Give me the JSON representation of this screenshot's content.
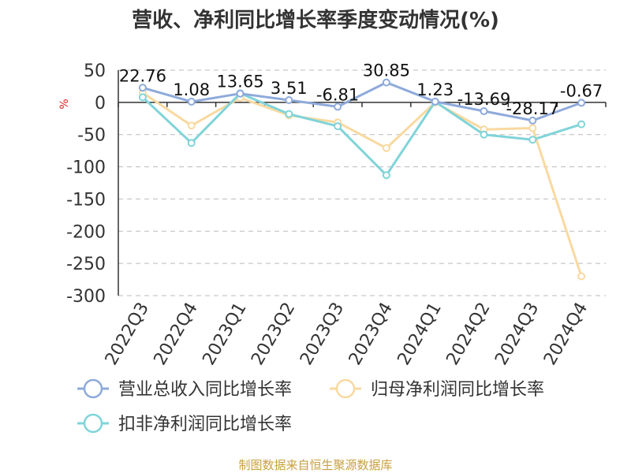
{
  "chart_data": {
    "type": "line",
    "title": "营收、净利同比增长率季度变动情况(%)",
    "ylabel": "%",
    "categories": [
      "2022Q3",
      "2022Q4",
      "2023Q1",
      "2023Q2",
      "2023Q3",
      "2023Q4",
      "2024Q1",
      "2024Q2",
      "2024Q3",
      "2024Q4"
    ],
    "ylim": [
      -300,
      50
    ],
    "yticks": [
      50,
      0,
      -50,
      -100,
      -150,
      -200,
      -250,
      -300
    ],
    "grid": true,
    "legend_position": "bottom",
    "series": [
      {
        "name": "营业总收入同比增长率",
        "color": "#8eaadb",
        "values": [
          22.76,
          1.08,
          13.65,
          3.51,
          -6.81,
          30.85,
          1.23,
          -13.69,
          -28.17,
          -0.67
        ],
        "labels": [
          "22.76",
          "1.08",
          "13.65",
          "3.51",
          "-6.81",
          "30.85",
          "1.23",
          "-13.69",
          "-28.17",
          "-0.67"
        ]
      },
      {
        "name": "归母净利润同比增长率",
        "color": "#f9d9a0",
        "values": [
          15,
          -36,
          7,
          -20,
          -31,
          -71,
          0,
          -42,
          -40,
          -270
        ]
      },
      {
        "name": "扣非净利润同比增长率",
        "color": "#80d4d9",
        "values": [
          8,
          -63,
          14,
          -18,
          -37,
          -113,
          1,
          -50,
          -58,
          -34
        ]
      }
    ],
    "source": "制图数据来自恒生聚源数据库"
  }
}
